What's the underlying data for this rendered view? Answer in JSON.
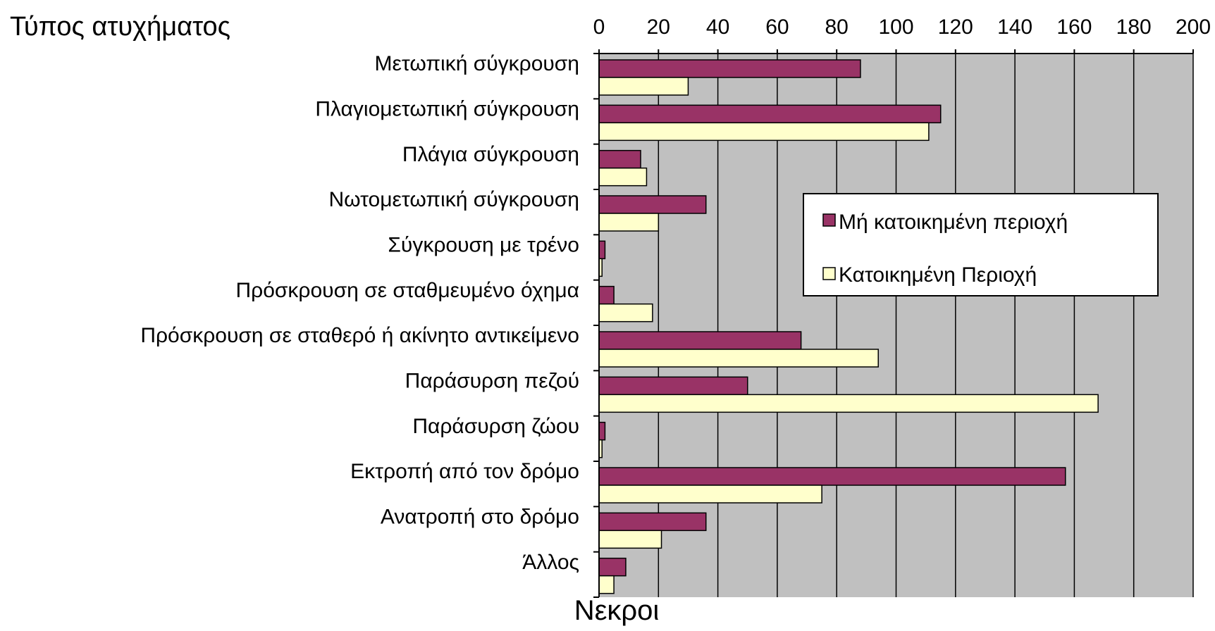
{
  "colors": {
    "plot_background": "#c0c0c0",
    "gridline": "#000000",
    "series_non_urban": "#993366",
    "series_urban": "#ffffcc",
    "bar_outline": "#000000"
  },
  "chart_data": {
    "type": "bar",
    "orientation": "horizontal",
    "title": "Τύπος ατυχήματος",
    "xlabel": "Νεκροι",
    "ylabel": "",
    "xlim": [
      0,
      200
    ],
    "x_ticks": [
      0,
      20,
      40,
      60,
      80,
      100,
      120,
      140,
      160,
      180,
      200
    ],
    "x_tick_labels": [
      "0",
      "20",
      "40",
      "60",
      "80",
      "100",
      "120",
      "140",
      "160",
      "180",
      "200"
    ],
    "x_axis_position": "top",
    "grid": "vertical gridlines",
    "legend_position": "right, inside plot",
    "categories": [
      "Μετωπική σύγκρουση",
      "Πλαγιομετωπική σύγκρουση",
      "Πλάγια σύγκρουση",
      "Νωτομετωπική σύγκρουση",
      "Σύγκρουση με τρένο",
      "Πρόσκρουση σε σταθμευμένο όχημα",
      "Πρόσκρουση σε σταθερό ή ακίνητο αντικείμενο",
      "Παράσυρση πεζού",
      "Παράσυρση ζώου",
      "Εκτροπή από τον δρόμο",
      "Ανατροπή στο δρόμο",
      "Άλλος"
    ],
    "series": [
      {
        "name": "Μή κατοικημένη περιοχή",
        "values": [
          88,
          115,
          14,
          36,
          2,
          5,
          68,
          50,
          2,
          157,
          36,
          9
        ]
      },
      {
        "name": "Κατοικημένη Περιοχή",
        "values": [
          30,
          111,
          16,
          20,
          1,
          18,
          94,
          168,
          1,
          75,
          21,
          5
        ]
      }
    ]
  }
}
